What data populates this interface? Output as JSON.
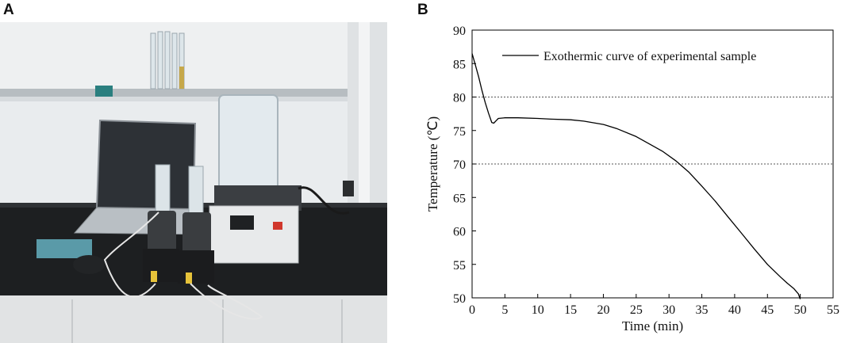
{
  "panels": {
    "a": "A",
    "b": "B"
  },
  "photo": {
    "content": "lab-apparatus-photo"
  },
  "chart_data": {
    "type": "line",
    "title": "",
    "xlabel": "Time (min)",
    "ylabel": "Temperature (℃)",
    "xlim": [
      0,
      55
    ],
    "ylim": [
      50,
      90
    ],
    "xticks": [
      0,
      5,
      10,
      15,
      20,
      25,
      30,
      35,
      40,
      45,
      50,
      55
    ],
    "yticks": [
      50,
      55,
      60,
      65,
      70,
      75,
      80,
      85,
      90
    ],
    "grid": false,
    "reference_lines": [
      80,
      70
    ],
    "legend": {
      "position": "top-right"
    },
    "series": [
      {
        "name": "Exothermic curve of experimental sample",
        "color": "#000000",
        "x": [
          0,
          0.5,
          1,
          1.5,
          2,
          2.5,
          3,
          3.3,
          3.7,
          4,
          5,
          7,
          10,
          12,
          15,
          17,
          20,
          22,
          25,
          27,
          29,
          31,
          33,
          35,
          37,
          39,
          41,
          43,
          45,
          47,
          48,
          49,
          49.7,
          50
        ],
        "y": [
          86.5,
          84.8,
          83,
          81,
          79.2,
          77.6,
          76.2,
          76.1,
          76.5,
          76.8,
          76.9,
          76.9,
          76.8,
          76.7,
          76.6,
          76.4,
          75.9,
          75.3,
          74.1,
          73,
          71.9,
          70.5,
          68.8,
          66.7,
          64.5,
          62.1,
          59.7,
          57.3,
          55,
          53.1,
          52.2,
          51.4,
          50.6,
          49.8
        ]
      }
    ]
  }
}
